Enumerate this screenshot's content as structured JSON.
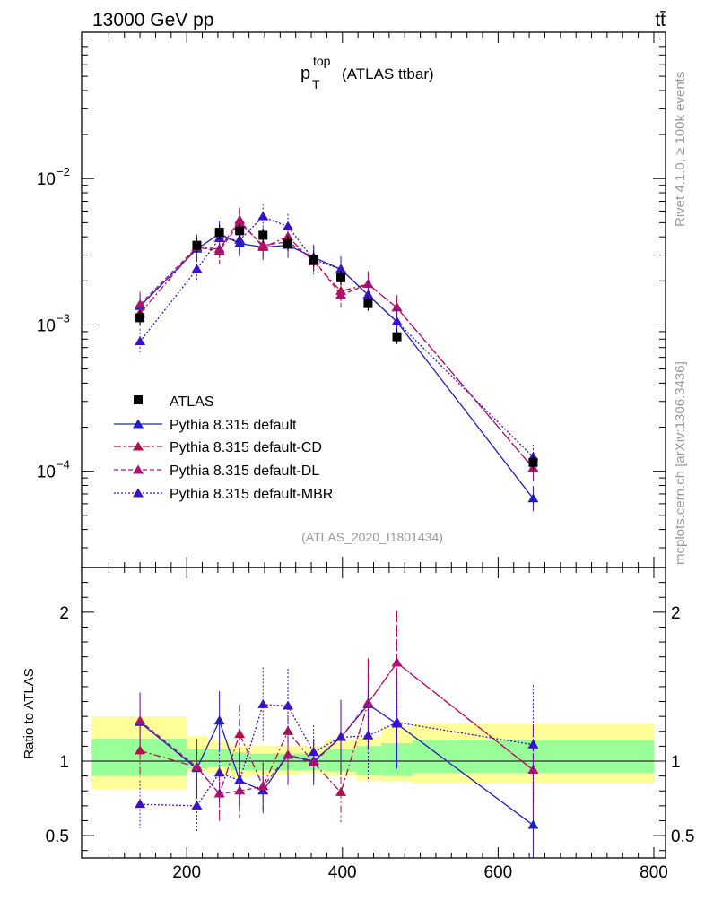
{
  "header": {
    "left_title": "13000 GeV pp",
    "right_title": "tt̄",
    "plot_title_main": "p",
    "plot_title_sup": "top",
    "plot_title_sub": "T",
    "plot_title_rest": "(ATLAS ttbar)",
    "analysis_id": "(ATLAS_2020_I1801434)",
    "side_label_top": "Rivet 4.1.0, ≥ 100k events",
    "side_label_bottom": "mcplots.cern.ch [arXiv:1306.3436]",
    "ratio_ylabel": "Ratio to ATLAS"
  },
  "colors": {
    "data": "#000000",
    "default": "#1f1fbf",
    "cd": "#b0104a",
    "dl": "#b0106e",
    "mbr": "#3a10c8",
    "band_inner": "#99ff99",
    "band_outer": "#ffff99"
  },
  "chart_data": {
    "type": "scatter",
    "main": {
      "yscale": "log",
      "ylim": [
        2.2e-05,
        0.1
      ],
      "ytick_labels": [
        "10^-4",
        "10^-3",
        "10^-2"
      ],
      "ytick_values": [
        0.0001,
        0.001,
        0.01
      ]
    },
    "ratio": {
      "ylim": [
        0.35,
        2.3
      ],
      "ytick_labels": [
        "0.5",
        "1",
        "2"
      ],
      "ytick_values": [
        0.5,
        1,
        2
      ]
    },
    "xlim": [
      65,
      815
    ],
    "xtick_labels": [
      "200",
      "400",
      "600",
      "800"
    ],
    "xtick_values": [
      200,
      400,
      600,
      800
    ],
    "x": [
      140,
      213,
      242,
      268,
      298,
      330,
      363,
      398,
      433,
      470,
      645
    ],
    "data": {
      "name": "ATLAS",
      "values": [
        0.00112,
        0.0035,
        0.0043,
        0.0044,
        0.0041,
        0.0036,
        0.0028,
        0.0021,
        0.0014,
        0.00083,
        0.000115
      ],
      "band_edges": [
        78,
        200,
        227,
        256,
        283,
        315,
        345,
        378,
        418,
        450,
        490,
        800
      ],
      "band_inner": [
        [
          0.9,
          1.15
        ],
        [
          0.95,
          1.08
        ],
        [
          0.96,
          1.08
        ],
        [
          0.94,
          1.06
        ],
        [
          0.94,
          1.05
        ],
        [
          0.94,
          1.05
        ],
        [
          0.94,
          1.05
        ],
        [
          0.93,
          1.08
        ],
        [
          0.91,
          1.1
        ],
        [
          0.9,
          1.12
        ],
        [
          0.92,
          1.14
        ]
      ],
      "band_outer": [
        [
          0.81,
          1.3
        ],
        [
          0.93,
          1.17
        ],
        [
          0.92,
          1.14
        ],
        [
          0.89,
          1.1
        ],
        [
          0.91,
          1.1
        ],
        [
          0.91,
          1.1
        ],
        [
          0.92,
          1.1
        ],
        [
          0.9,
          1.14
        ],
        [
          0.87,
          1.16
        ],
        [
          0.86,
          1.23
        ],
        [
          0.85,
          1.25
        ]
      ]
    },
    "series": [
      {
        "name": "Pythia 8.315 default",
        "style": "solid",
        "color_key": "default",
        "values": [
          0.00134,
          0.0033,
          0.0042,
          0.0036,
          0.0034,
          0.0035,
          0.0029,
          0.0024,
          0.0016,
          0.00105,
          6.5e-05
        ],
        "ratio": [
          1.26,
          0.95,
          1.27,
          0.87,
          0.8,
          1.04,
          1.0,
          1.16,
          1.38,
          1.25,
          0.57
        ],
        "ratio_err": [
          0.2,
          0.2,
          0.2,
          0.18,
          0.15,
          0.2,
          0.15,
          0.25,
          0.3,
          0.3,
          0.3
        ]
      },
      {
        "name": "Pythia 8.315 default-CD",
        "style": "dashdot",
        "color_key": "cd",
        "values": [
          0.0012,
          0.0034,
          0.0033,
          0.0052,
          0.0034,
          0.004,
          0.0027,
          0.0017,
          0.0019,
          0.00131,
          0.000105
        ],
        "ratio": [
          1.07,
          0.96,
          0.78,
          1.18,
          0.83,
          1.2,
          0.99,
          0.79,
          1.39,
          1.66,
          0.94
        ],
        "ratio_err": [
          0.18,
          0.18,
          0.18,
          0.2,
          0.16,
          0.2,
          0.15,
          0.2,
          0.3,
          0.35,
          0.3
        ]
      },
      {
        "name": "Pythia 8.315 default-DL",
        "style": "dashed",
        "color_key": "dl",
        "values": [
          0.00138,
          0.0034,
          0.0032,
          0.005,
          0.0035,
          0.0037,
          0.0028,
          0.0016,
          0.0019,
          0.00131,
          0.000105
        ],
        "ratio": [
          1.27,
          0.96,
          0.78,
          0.8,
          0.83,
          1.04,
          0.99,
          1.16,
          1.39,
          1.66,
          0.94
        ],
        "ratio_err": [
          0.18,
          0.18,
          0.18,
          0.18,
          0.16,
          0.2,
          0.15,
          0.25,
          0.3,
          0.35,
          0.3
        ]
      },
      {
        "name": "Pythia 8.315 default-MBR",
        "style": "dotted",
        "color_key": "mbr",
        "values": [
          0.00077,
          0.0024,
          0.0039,
          0.0038,
          0.0055,
          0.0047,
          0.0028,
          0.0024,
          0.0016,
          0.00105,
          0.000125
        ],
        "ratio": [
          0.71,
          0.7,
          0.92,
          0.87,
          1.38,
          1.37,
          1.06,
          1.16,
          1.17,
          1.26,
          1.11
        ],
        "ratio_err": [
          0.16,
          0.18,
          0.2,
          0.18,
          0.25,
          0.25,
          0.18,
          0.25,
          0.3,
          0.3,
          0.4
        ]
      }
    ]
  }
}
